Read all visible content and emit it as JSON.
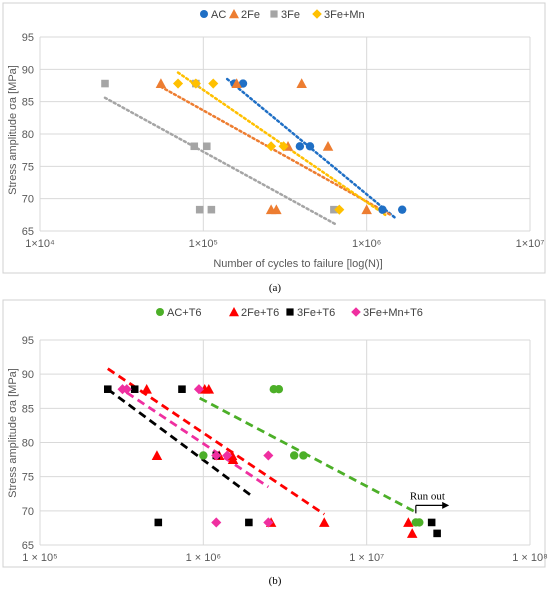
{
  "chart_data": [
    {
      "type": "scatter",
      "title": "",
      "caption": "(a)",
      "xlabel": "Number of cycles to failure [log(N)]",
      "ylabel": "Stress amplitude σa [MPa]",
      "x_scale": "log",
      "xlim": [
        10000,
        10000000
      ],
      "ylim": [
        65,
        95
      ],
      "x_ticks": [
        10000,
        100000,
        1000000,
        10000000
      ],
      "x_tick_labels": [
        "1×10⁴",
        "1×10⁵",
        "1×10⁶",
        "1×10⁷"
      ],
      "y_ticks": [
        65,
        70,
        75,
        80,
        85,
        90,
        95
      ],
      "y_tick_labels": [
        "65",
        "70",
        "75",
        "80",
        "85",
        "90",
        "95"
      ],
      "grid": true,
      "legend_position": "top",
      "series": [
        {
          "name": "AC",
          "marker": "circle",
          "color": "#1f6fc5",
          "points": [
            [
              155000,
              87.8
            ],
            [
              175000,
              87.8
            ],
            [
              390000,
              78.1
            ],
            [
              450000,
              78.1
            ],
            [
              1250000,
              68.3
            ],
            [
              1650000,
              68.3
            ]
          ],
          "trend": [
            [
              140000,
              88.5
            ],
            [
              1500000,
              67.0
            ]
          ]
        },
        {
          "name": "2Fe",
          "marker": "triangle",
          "color": "#ed7d31",
          "points": [
            [
              55000,
              87.8
            ],
            [
              160000,
              87.8
            ],
            [
              400000,
              87.8
            ],
            [
              330000,
              78.1
            ],
            [
              580000,
              78.1
            ],
            [
              260000,
              68.3
            ],
            [
              280000,
              68.3
            ],
            [
              1000000,
              68.3
            ]
          ],
          "trend": [
            [
              55000,
              87.3
            ],
            [
              1400000,
              67.5
            ]
          ]
        },
        {
          "name": "3Fe",
          "marker": "square",
          "color": "#a5a5a5",
          "points": [
            [
              25000,
              87.8
            ],
            [
              90000,
              87.8
            ],
            [
              88000,
              78.1
            ],
            [
              105000,
              78.1
            ],
            [
              95000,
              68.3
            ],
            [
              112000,
              68.3
            ],
            [
              630000,
              68.3
            ]
          ],
          "trend": [
            [
              25000,
              85.6
            ],
            [
              650000,
              66.0
            ]
          ]
        },
        {
          "name": "3Fe+Mn",
          "marker": "diamond",
          "color": "#ffc000",
          "points": [
            [
              70000,
              87.8
            ],
            [
              90000,
              87.8
            ],
            [
              115000,
              87.8
            ],
            [
              260000,
              78.1
            ],
            [
              310000,
              78.1
            ],
            [
              680000,
              68.3
            ]
          ],
          "trend": [
            [
              70000,
              89.5
            ],
            [
              1300000,
              67.5
            ]
          ]
        }
      ]
    },
    {
      "type": "scatter",
      "title": "",
      "caption": "(b)",
      "xlabel": "",
      "ylabel": "Stress amplitude σa [MPa]",
      "x_scale": "log",
      "xlim": [
        100000,
        100000000
      ],
      "ylim": [
        65,
        95
      ],
      "x_ticks": [
        100000,
        1000000,
        10000000,
        100000000
      ],
      "x_tick_labels": [
        "1 × 10⁵",
        "1 × 10⁶",
        "1 × 10⁷",
        "1 × 10⁸"
      ],
      "y_ticks": [
        65,
        70,
        75,
        80,
        85,
        90,
        95
      ],
      "y_tick_labels": [
        "65",
        "70",
        "75",
        "80",
        "85",
        "90",
        "95"
      ],
      "grid": true,
      "legend_position": "top",
      "annotation": {
        "text": "Run out",
        "x": 20000000,
        "y": 70.8,
        "arrow_to_x": 32000000
      },
      "series": [
        {
          "name": "AC+T6",
          "marker": "circle",
          "color": "#4caf28",
          "points": [
            [
              2700000,
              87.8
            ],
            [
              2900000,
              87.8
            ],
            [
              3600000,
              78.1
            ],
            [
              4100000,
              78.1
            ],
            [
              1000000,
              78.1
            ],
            [
              20000000,
              68.3
            ],
            [
              21000000,
              68.3
            ]
          ],
          "trend": [
            [
              950000,
              86.5
            ],
            [
              20000000,
              69.8
            ]
          ]
        },
        {
          "name": "2Fe+T6",
          "marker": "triangle",
          "color": "#ff0000",
          "points": [
            [
              450000,
              87.8
            ],
            [
              1020000,
              87.8
            ],
            [
              1080000,
              87.8
            ],
            [
              520000,
              78.1
            ],
            [
              1250000,
              78.1
            ],
            [
              1500000,
              78.1
            ],
            [
              1520000,
              77.5
            ],
            [
              2600000,
              68.3
            ],
            [
              5500000,
              68.3
            ],
            [
              18000000,
              68.3
            ],
            [
              19000000,
              66.7
            ]
          ],
          "trend": [
            [
              260000,
              90.8
            ],
            [
              5500000,
              69.5
            ]
          ]
        },
        {
          "name": "3Fe+T6",
          "marker": "square",
          "color": "#000000",
          "points": [
            [
              260000,
              87.8
            ],
            [
              380000,
              87.8
            ],
            [
              740000,
              87.8
            ],
            [
              1200000,
              78.1
            ],
            [
              530000,
              68.3
            ],
            [
              1900000,
              68.3
            ],
            [
              25000000,
              68.3
            ],
            [
              27000000,
              66.7
            ]
          ],
          "trend": [
            [
              260000,
              87.8
            ],
            [
              1950000,
              72.3
            ]
          ]
        },
        {
          "name": "3Fe+Mn+T6",
          "marker": "diamond",
          "color": "#ef2fa0",
          "points": [
            [
              320000,
              87.8
            ],
            [
              340000,
              87.8
            ],
            [
              940000,
              87.8
            ],
            [
              1200000,
              78.1
            ],
            [
              1400000,
              78.1
            ],
            [
              2500000,
              78.1
            ],
            [
              1200000,
              68.3
            ],
            [
              2500000,
              68.3
            ]
          ],
          "trend": [
            [
              340000,
              87.3
            ],
            [
              2500000,
              73.5
            ]
          ]
        }
      ]
    }
  ]
}
